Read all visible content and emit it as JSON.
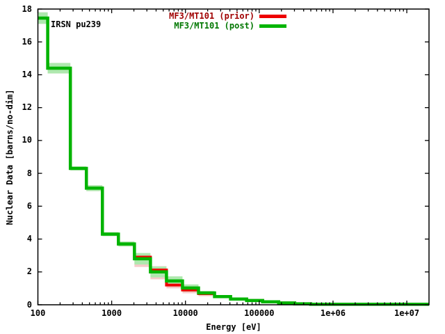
{
  "figure": {
    "inplot_label": "IRSN pu239",
    "xlabel": "Energy [eV]",
    "ylabel": "Nuclear Data [barns/no-dim]",
    "legend": [
      {
        "label": "MF3/MT101 (prior)",
        "text_color": "#a00000",
        "line_color": "#ee0000"
      },
      {
        "label": "MF3/MT101 (post)",
        "text_color": "#007700",
        "line_color": "#00b400"
      }
    ]
  },
  "chart_data": {
    "type": "line",
    "style": "histogram-steps with uncertainty bands",
    "title": "",
    "xlabel": "Energy [eV]",
    "ylabel": "Nuclear Data [barns/no-dim]",
    "x_scale": "log",
    "y_scale": "linear",
    "xlim": [
      100,
      20000000
    ],
    "ylim": [
      0,
      18
    ],
    "x_tick_values": [
      100,
      1000,
      10000,
      100000,
      1000000,
      10000000
    ],
    "x_tick_labels": [
      "100",
      "1000",
      "10000",
      "100000",
      "1e+06",
      "1e+07"
    ],
    "y_tick_values": [
      0,
      2,
      4,
      6,
      8,
      10,
      12,
      14,
      16,
      18
    ],
    "y_tick_labels": [
      "0",
      "2",
      "4",
      "6",
      "8",
      "10",
      "12",
      "14",
      "16",
      "18"
    ],
    "grid": false,
    "legend_position": "top-center-right inside",
    "group_boundaries_eV": [
      100,
      135.8,
      275.4,
      454,
      748.5,
      1234,
      2035,
      3355,
      5531,
      9119,
      15034,
      24788,
      40868,
      67379,
      111090,
      183156,
      301974,
      497871,
      20000000
    ],
    "series": [
      {
        "name": "MF3/MT101 (prior)",
        "color": "#ee0000",
        "band_color": "#f6caca",
        "values": [
          17.45,
          14.4,
          8.3,
          7.1,
          4.3,
          3.7,
          2.9,
          2.12,
          1.2,
          0.9,
          0.68,
          0.5,
          0.35,
          0.26,
          0.18,
          0.11,
          0.06,
          0.03
        ],
        "band_lo": [
          17.1,
          14.08,
          8.18,
          6.92,
          4.18,
          3.55,
          2.3,
          1.55,
          1.0,
          0.7,
          0.52,
          0.42,
          0.29,
          0.21,
          0.15,
          0.09,
          0.04,
          0.01
        ],
        "band_hi": [
          17.8,
          14.72,
          8.42,
          7.28,
          4.42,
          3.85,
          3.1,
          2.35,
          1.6,
          1.15,
          0.8,
          0.58,
          0.41,
          0.31,
          0.21,
          0.13,
          0.08,
          0.03
        ]
      },
      {
        "name": "MF3/MT101 (post)",
        "color": "#00b400",
        "band_color": "#aee8ae",
        "values": [
          17.45,
          14.4,
          8.3,
          7.1,
          4.3,
          3.7,
          2.8,
          2.0,
          1.45,
          1.02,
          0.72,
          0.5,
          0.35,
          0.26,
          0.18,
          0.11,
          0.06,
          0.03
        ],
        "band_lo": [
          17.1,
          14.08,
          8.18,
          6.92,
          4.18,
          3.55,
          2.45,
          1.67,
          1.17,
          0.8,
          0.6,
          0.42,
          0.29,
          0.21,
          0.15,
          0.09,
          0.04,
          0.01
        ],
        "band_hi": [
          17.8,
          14.72,
          8.42,
          7.28,
          4.42,
          3.85,
          3.15,
          2.33,
          1.73,
          1.24,
          0.84,
          0.58,
          0.41,
          0.31,
          0.21,
          0.13,
          0.08,
          0.03
        ]
      }
    ]
  }
}
